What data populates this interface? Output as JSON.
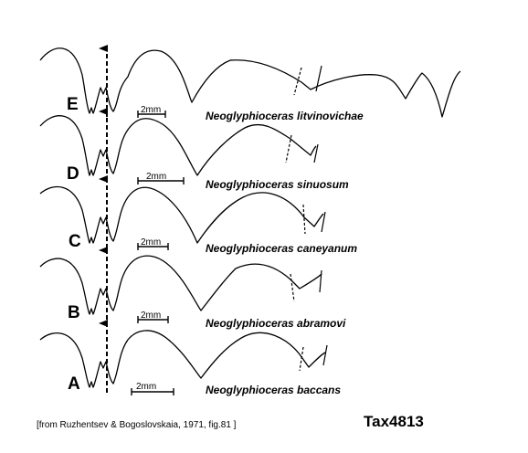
{
  "figure": {
    "panels": [
      {
        "letter": "E",
        "species": "Neoglyphioceras litvinovichae",
        "scale": "2mm"
      },
      {
        "letter": "D",
        "species": "Neoglyphioceras sinuosum",
        "scale": "2mm"
      },
      {
        "letter": "C",
        "species": "Neoglyphioceras caneyanum",
        "scale": "2mm"
      },
      {
        "letter": "B",
        "species": "Neoglyphioceras abramovi",
        "scale": "2mm"
      },
      {
        "letter": "A",
        "species": "Neoglyphioceras baccans",
        "scale": "2mm"
      }
    ],
    "citation": "[from Ruzhentsev & Bogoslovskaia, 1971, fig.81 ]",
    "taxon_id": "Tax4813"
  }
}
